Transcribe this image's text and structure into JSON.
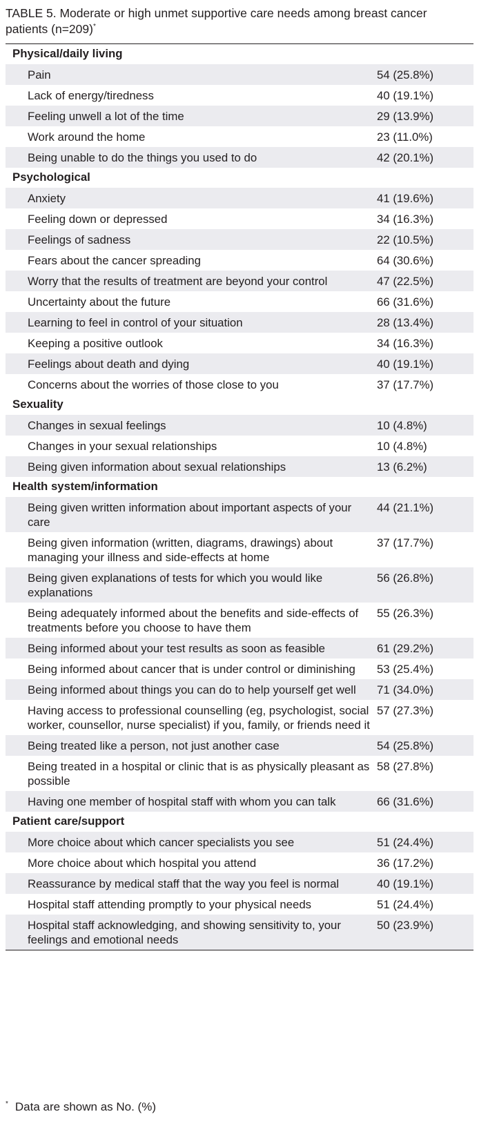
{
  "caption": {
    "text": "TABLE 5. Moderate or high unmet supportive care needs among breast cancer patients (n=209)",
    "marker": "*"
  },
  "sections": [
    {
      "title": "Physical/daily living",
      "rows": [
        {
          "item": "Pain",
          "value": "54 (25.8%)"
        },
        {
          "item": "Lack of energy/tiredness",
          "value": "40 (19.1%)"
        },
        {
          "item": "Feeling unwell a lot of the time",
          "value": "29 (13.9%)"
        },
        {
          "item": "Work around the home",
          "value": "23 (11.0%)"
        },
        {
          "item": "Being unable to do the things you used to do",
          "value": "42 (20.1%)"
        }
      ]
    },
    {
      "title": "Psychological",
      "rows": [
        {
          "item": "Anxiety",
          "value": "41 (19.6%)"
        },
        {
          "item": "Feeling down or depressed",
          "value": "34 (16.3%)"
        },
        {
          "item": "Feelings of sadness",
          "value": "22 (10.5%)"
        },
        {
          "item": "Fears about the cancer spreading",
          "value": "64 (30.6%)"
        },
        {
          "item": "Worry that the results of treatment are beyond your control",
          "value": "47 (22.5%)"
        },
        {
          "item": "Uncertainty about the future",
          "value": "66 (31.6%)"
        },
        {
          "item": "Learning to feel in control of your situation",
          "value": "28 (13.4%)"
        },
        {
          "item": "Keeping a positive outlook",
          "value": "34 (16.3%)"
        },
        {
          "item": "Feelings about death and dying",
          "value": "40 (19.1%)"
        },
        {
          "item": "Concerns about the worries of those close to you",
          "value": "37 (17.7%)"
        }
      ]
    },
    {
      "title": "Sexuality",
      "rows": [
        {
          "item": "Changes in sexual feelings",
          "value": "10 (4.8%)"
        },
        {
          "item": "Changes in your sexual relationships",
          "value": "10 (4.8%)"
        },
        {
          "item": "Being given information about sexual relationships",
          "value": "13 (6.2%)"
        }
      ]
    },
    {
      "title": "Health system/information",
      "rows": [
        {
          "item": "Being given written information about important aspects of your care",
          "value": "44 (21.1%)"
        },
        {
          "item": "Being given information (written, diagrams, drawings) about managing your illness and side-effects at home",
          "value": "37 (17.7%)"
        },
        {
          "item": "Being given explanations of tests for which you would like explanations",
          "value": "56 (26.8%)"
        },
        {
          "item": "Being adequately informed about the benefits and side-effects of treatments before you choose to have them",
          "value": "55 (26.3%)"
        },
        {
          "item": "Being informed about your test results as soon as feasible",
          "value": "61 (29.2%)"
        },
        {
          "item": "Being informed about cancer that is under control or diminishing",
          "value": "53 (25.4%)"
        },
        {
          "item": "Being informed about things you can do to help yourself get well",
          "value": "71 (34.0%)"
        },
        {
          "item": "Having access to professional counselling (eg, psychologist, social worker, counsellor, nurse specialist) if you, family, or friends need it",
          "value": "57 (27.3%)"
        },
        {
          "item": "Being treated like a person, not just another case",
          "value": "54 (25.8%)"
        },
        {
          "item": "Being treated in a hospital or clinic that is as physically pleasant as possible",
          "value": "58 (27.8%)"
        },
        {
          "item": "Having one member of hospital staff with whom you can talk",
          "value": "66 (31.6%)"
        }
      ]
    },
    {
      "title": "Patient care/support",
      "rows": [
        {
          "item": "More choice about which cancer specialists you see",
          "value": "51 (24.4%)"
        },
        {
          "item": "More choice about which hospital you attend",
          "value": "36 (17.2%)"
        },
        {
          "item": "Reassurance by medical staff that the way you feel is normal",
          "value": "40 (19.1%)"
        },
        {
          "item": "Hospital staff attending promptly to your physical needs",
          "value": "51 (24.4%)"
        },
        {
          "item": "Hospital staff acknowledging, and showing sensitivity to, your feelings and emotional needs",
          "value": "50 (23.9%)"
        }
      ]
    }
  ],
  "footnote": {
    "marker": "*",
    "text": "Data are shown as No. (%)"
  },
  "colors": {
    "row_shading": "#ebebef",
    "text": "#231f20"
  }
}
